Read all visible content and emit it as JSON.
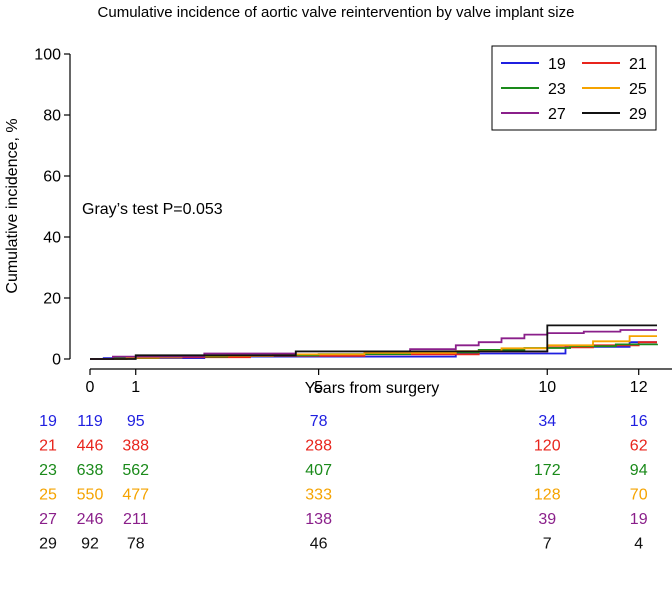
{
  "chart_data": {
    "type": "line",
    "step": true,
    "title": "Cumulative incidence of aortic valve reintervention by valve implant size",
    "xlabel": "Years from surgery",
    "ylabel": "Cumulative incidence, %",
    "xlim": [
      0,
      12.4
    ],
    "ylim": [
      0,
      100
    ],
    "xticks": [
      0,
      1,
      5,
      10,
      12
    ],
    "yticks": [
      0,
      20,
      40,
      60,
      80,
      100
    ],
    "annotation": "Gray’s test P=0.053",
    "legend_position": "top-right",
    "series": [
      {
        "name": "19",
        "color": "#1f1fe0",
        "x": [
          0,
          0.3,
          2.5,
          8.0,
          10.4,
          11.8,
          12.4
        ],
        "y": [
          0,
          0.3,
          0.8,
          1.8,
          4.0,
          5.5,
          5.5
        ]
      },
      {
        "name": "21",
        "color": "#e8241c",
        "x": [
          0,
          0.5,
          1.5,
          3.5,
          6.0,
          8.5,
          10.0,
          11.0,
          12.0,
          12.4
        ],
        "y": [
          0,
          0.3,
          0.6,
          1.0,
          1.5,
          2.5,
          3.8,
          4.5,
          5.5,
          5.5
        ]
      },
      {
        "name": "23",
        "color": "#1a8a1a",
        "x": [
          0,
          0.5,
          1.5,
          3.0,
          5.0,
          7.0,
          8.5,
          9.5,
          10.5,
          11.5,
          12.4
        ],
        "y": [
          0,
          0.4,
          0.8,
          1.2,
          1.6,
          2.2,
          3.0,
          3.6,
          4.2,
          4.8,
          5.0
        ]
      },
      {
        "name": "25",
        "color": "#f5a300",
        "x": [
          0,
          0.8,
          2.0,
          4.0,
          6.0,
          8.0,
          9.0,
          10.0,
          11.0,
          11.8,
          12.4
        ],
        "y": [
          0,
          0.5,
          1.0,
          1.5,
          2.0,
          2.6,
          3.5,
          4.5,
          5.8,
          7.5,
          7.5
        ]
      },
      {
        "name": "27",
        "color": "#8a1f8a",
        "x": [
          0,
          0.5,
          2.5,
          4.5,
          7.0,
          8.0,
          8.5,
          9.0,
          9.5,
          10.0,
          10.8,
          11.6,
          12.4
        ],
        "y": [
          0,
          0.8,
          1.8,
          2.5,
          3.2,
          4.5,
          5.5,
          6.8,
          8.0,
          8.5,
          9.0,
          9.5,
          9.5
        ]
      },
      {
        "name": "29",
        "color": "#111111",
        "x": [
          0,
          1.0,
          4.5,
          10.0,
          12.4
        ],
        "y": [
          0,
          1.2,
          2.5,
          11.0,
          11.0
        ]
      }
    ],
    "risk_table": {
      "timepoints": [
        0,
        1,
        5,
        10,
        12
      ],
      "rows": [
        {
          "label": "19",
          "counts": [
            "119",
            "95",
            "78",
            "34",
            "16"
          ]
        },
        {
          "label": "21",
          "counts": [
            "446",
            "388",
            "288",
            "120",
            "62"
          ]
        },
        {
          "label": "23",
          "counts": [
            "638",
            "562",
            "407",
            "172",
            "94"
          ]
        },
        {
          "label": "25",
          "counts": [
            "550",
            "477",
            "333",
            "128",
            "70"
          ]
        },
        {
          "label": "27",
          "counts": [
            "246",
            "211",
            "138",
            "39",
            "19"
          ]
        },
        {
          "label": "29",
          "counts": [
            "92",
            "78",
            "46",
            "7",
            "4"
          ],
          "color": "#111111"
        }
      ]
    }
  }
}
